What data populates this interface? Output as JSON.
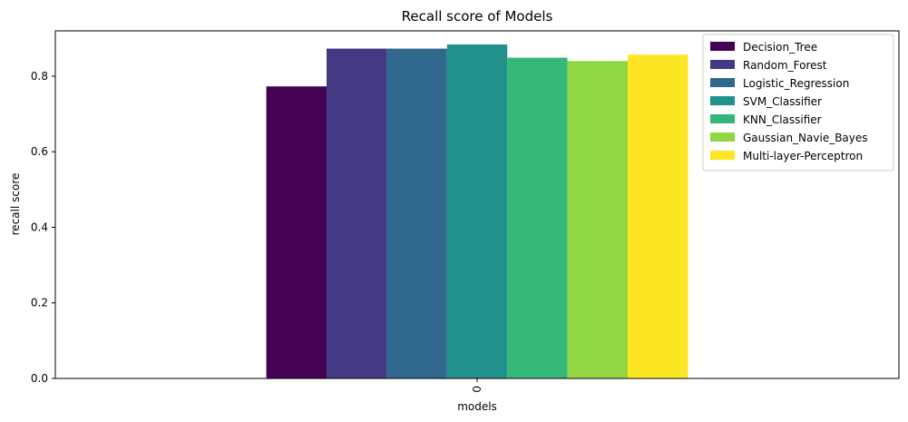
{
  "chart_data": {
    "type": "bar",
    "title": "Recall score of Models",
    "xlabel": "models",
    "ylabel": "recall score",
    "categories": [
      "0"
    ],
    "ylim": [
      0,
      0.92
    ],
    "yticks": [
      "0.0",
      "0.2",
      "0.4",
      "0.6",
      "0.8"
    ],
    "grid": false,
    "legend_position": "top-right",
    "series": [
      {
        "name": "Decision_Tree",
        "values": [
          0.773
        ],
        "color": "#440154"
      },
      {
        "name": "Random_Forest",
        "values": [
          0.873
        ],
        "color": "#443983"
      },
      {
        "name": "Logistic_Regression",
        "values": [
          0.873
        ],
        "color": "#31688e"
      },
      {
        "name": "SVM_Classifier",
        "values": [
          0.884
        ],
        "color": "#21918c"
      },
      {
        "name": "KNN_Classifier",
        "values": [
          0.849
        ],
        "color": "#35b779"
      },
      {
        "name": "Gaussian_Navie_Bayes",
        "values": [
          0.84
        ],
        "color": "#90d743"
      },
      {
        "name": "Multi-layer-Perceptron",
        "values": [
          0.857
        ],
        "color": "#fde725"
      }
    ]
  }
}
